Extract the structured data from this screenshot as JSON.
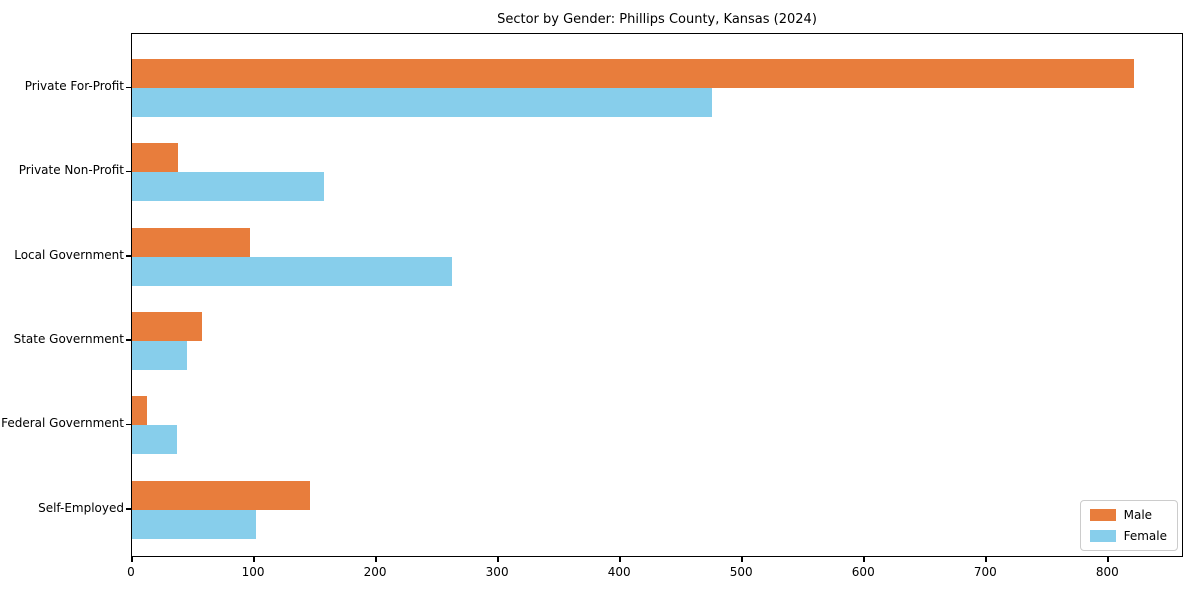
{
  "chart_data": {
    "type": "bar",
    "orientation": "horizontal",
    "title": "Sector by Gender: Phillips County, Kansas (2024)",
    "categories": [
      "Private For-Profit",
      "Private Non-Profit",
      "Local Government",
      "State Government",
      "Federal Government",
      "Self-Employed"
    ],
    "series": [
      {
        "name": "Male",
        "color": "#e87d3c",
        "values": [
          821,
          38,
          97,
          57,
          12,
          146
        ]
      },
      {
        "name": "Female",
        "color": "#87ceeb",
        "values": [
          475,
          157,
          262,
          45,
          37,
          102
        ]
      }
    ],
    "xlabel": "",
    "ylabel": "",
    "xlim": [
      0,
      862
    ],
    "xticks": [
      0,
      100,
      200,
      300,
      400,
      500,
      600,
      700,
      800
    ],
    "legend_position": "lower right",
    "grid": false,
    "background_color": "#ffffff",
    "axis_color": "#000000"
  }
}
